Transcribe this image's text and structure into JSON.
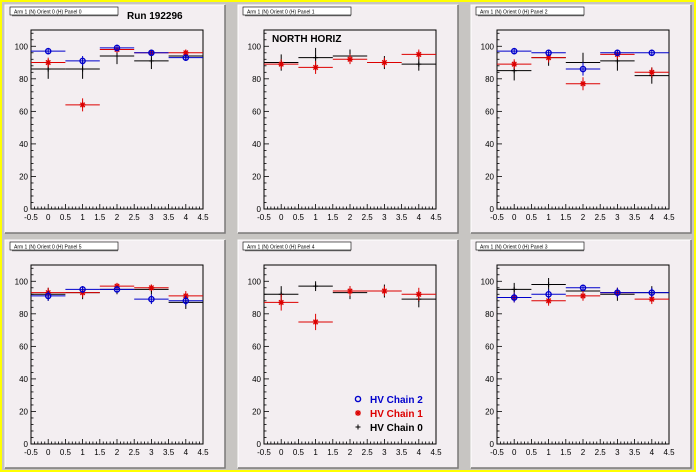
{
  "colors": {
    "chain2": "#0000cc",
    "chain1": "#dd0000",
    "chain0": "#000000",
    "pad_bg": "#f3eef1",
    "canvas_bg": "#c7c5c2",
    "border": "#ffff00"
  },
  "chart_data": [
    {
      "type": "scatter",
      "title": "Arm 1 (N) Orient 0 (H) Panel 0",
      "annotation": "Run 192296",
      "xlim": [
        -0.5,
        4.5
      ],
      "ylim": [
        0,
        110
      ],
      "x_ticks": [
        "-0.5",
        "0",
        "0.5",
        "1",
        "1.5",
        "2",
        "2.5",
        "3",
        "3.5",
        "4",
        "4.5"
      ],
      "y_ticks": [
        "0",
        "20",
        "40",
        "60",
        "80",
        "100"
      ],
      "series": [
        {
          "name": "HV Chain 2",
          "marker": "circle",
          "x": [
            0,
            1,
            2,
            3,
            4
          ],
          "y": [
            97,
            91,
            99,
            96,
            93
          ],
          "yerr": [
            2,
            3,
            2,
            2,
            2
          ]
        },
        {
          "name": "HV Chain 1",
          "marker": "star",
          "x": [
            0,
            1,
            2,
            3,
            4
          ],
          "y": [
            90,
            64,
            98,
            96,
            96
          ],
          "yerr": [
            3,
            4,
            2,
            2,
            2
          ]
        },
        {
          "name": "HV Chain 0",
          "marker": "plus",
          "x": [
            0,
            1,
            2,
            3,
            4
          ],
          "y": [
            86,
            86,
            94,
            91,
            94
          ],
          "yerr": [
            6,
            6,
            5,
            5,
            3
          ]
        }
      ]
    },
    {
      "type": "scatter",
      "title": "Arm 1 (N) Orient 0 (H) Panel 1",
      "annotation": "NORTH HORIZ",
      "xlim": [
        -0.5,
        4.5
      ],
      "ylim": [
        0,
        110
      ],
      "x_ticks": [
        "-0.5",
        "0",
        "0.5",
        "1",
        "1.5",
        "2",
        "2.5",
        "3",
        "3.5",
        "4",
        "4.5"
      ],
      "y_ticks": [
        "0",
        "20",
        "40",
        "60",
        "80",
        "100"
      ],
      "series": [
        {
          "name": "HV Chain 1",
          "marker": "star",
          "x": [
            0,
            1,
            2,
            3,
            4
          ],
          "y": [
            89,
            87,
            92,
            90,
            95
          ],
          "yerr": [
            3,
            4,
            3,
            3,
            3
          ]
        },
        {
          "name": "HV Chain 0",
          "marker": "plus",
          "x": [
            0,
            1,
            2,
            3,
            4
          ],
          "y": [
            90,
            93,
            94,
            90,
            89
          ],
          "yerr": [
            5,
            6,
            4,
            4,
            4
          ]
        }
      ]
    },
    {
      "type": "scatter",
      "title": "Arm 1 (N) Orient 0 (H) Panel 2",
      "annotation": "",
      "xlim": [
        -0.5,
        4.5
      ],
      "ylim": [
        0,
        110
      ],
      "x_ticks": [
        "-0.5",
        "0",
        "0.5",
        "1",
        "1.5",
        "2",
        "2.5",
        "3",
        "3.5",
        "4",
        "4.5"
      ],
      "y_ticks": [
        "0",
        "20",
        "40",
        "60",
        "80",
        "100"
      ],
      "series": [
        {
          "name": "HV Chain 2",
          "marker": "circle",
          "x": [
            0,
            1,
            2,
            3,
            4
          ],
          "y": [
            97,
            96,
            86,
            96,
            96
          ],
          "yerr": [
            2,
            2,
            4,
            2,
            2
          ]
        },
        {
          "name": "HV Chain 1",
          "marker": "star",
          "x": [
            0,
            1,
            2,
            3,
            4
          ],
          "y": [
            89,
            93,
            77,
            95,
            84
          ],
          "yerr": [
            3,
            3,
            4,
            3,
            3
          ]
        },
        {
          "name": "HV Chain 0",
          "marker": "plus",
          "x": [
            0,
            1,
            2,
            3,
            4
          ],
          "y": [
            85,
            93,
            90,
            91,
            82
          ],
          "yerr": [
            6,
            5,
            6,
            6,
            5
          ]
        }
      ]
    },
    {
      "type": "scatter",
      "title": "Arm 1 (N) Orient 0 (H) Panel 5",
      "annotation": "",
      "xlim": [
        -0.5,
        4.5
      ],
      "ylim": [
        0,
        110
      ],
      "x_ticks": [
        "-0.5",
        "0",
        "0.5",
        "1",
        "1.5",
        "2",
        "2.5",
        "3",
        "3.5",
        "4",
        "4.5"
      ],
      "y_ticks": [
        "0",
        "20",
        "40",
        "60",
        "80",
        "100"
      ],
      "series": [
        {
          "name": "HV Chain 2",
          "marker": "circle",
          "x": [
            0,
            1,
            2,
            3,
            4
          ],
          "y": [
            91,
            95,
            95,
            89,
            88
          ],
          "yerr": [
            3,
            2,
            2,
            3,
            3
          ]
        },
        {
          "name": "HV Chain 1",
          "marker": "star",
          "x": [
            0,
            1,
            2,
            3,
            4
          ],
          "y": [
            93,
            93,
            97,
            96,
            91
          ],
          "yerr": [
            3,
            3,
            2,
            2,
            3
          ]
        },
        {
          "name": "HV Chain 0",
          "marker": "plus",
          "x": [
            0,
            1,
            2,
            3,
            4
          ],
          "y": [
            92,
            93,
            95,
            95,
            87
          ],
          "yerr": [
            4,
            4,
            3,
            3,
            4
          ]
        }
      ]
    },
    {
      "type": "scatter",
      "title": "Arm 1 (N) Orient 0 (H) Panel 4",
      "annotation": "",
      "xlim": [
        -0.5,
        4.5
      ],
      "ylim": [
        0,
        110
      ],
      "x_ticks": [
        "-0.5",
        "0",
        "0.5",
        "1",
        "1.5",
        "2",
        "2.5",
        "3",
        "3.5",
        "4",
        "4.5"
      ],
      "y_ticks": [
        "0",
        "20",
        "40",
        "60",
        "80",
        "100"
      ],
      "series": [
        {
          "name": "HV Chain 1",
          "marker": "star",
          "x": [
            0,
            1,
            2,
            3,
            4
          ],
          "y": [
            87,
            75,
            94,
            94,
            92
          ],
          "yerr": [
            5,
            5,
            3,
            3,
            4
          ]
        },
        {
          "name": "HV Chain 0",
          "marker": "plus",
          "x": [
            0,
            1,
            2,
            3,
            4
          ],
          "y": [
            92,
            97,
            93,
            94,
            89
          ],
          "yerr": [
            5,
            3,
            4,
            4,
            5
          ]
        }
      ],
      "legend": {
        "position": "bottom-right",
        "entries": [
          {
            "label": "HV Chain 2",
            "marker": "circle",
            "color": "#0000cc"
          },
          {
            "label": "HV Chain 1",
            "marker": "star",
            "color": "#dd0000"
          },
          {
            "label": "HV Chain 0",
            "marker": "plus",
            "color": "#000000"
          }
        ]
      }
    },
    {
      "type": "scatter",
      "title": "Arm 1 (N) Orient 0 (H) Panel 3",
      "annotation": "",
      "xlim": [
        -0.5,
        4.5
      ],
      "ylim": [
        0,
        110
      ],
      "x_ticks": [
        "-0.5",
        "0",
        "0.5",
        "1",
        "1.5",
        "2",
        "2.5",
        "3",
        "3.5",
        "4",
        "4.5"
      ],
      "y_ticks": [
        "0",
        "20",
        "40",
        "60",
        "80",
        "100"
      ],
      "series": [
        {
          "name": "HV Chain 2",
          "marker": "circle",
          "x": [
            0,
            1,
            2,
            3,
            4
          ],
          "y": [
            90,
            92,
            96,
            93,
            93
          ],
          "yerr": [
            3,
            3,
            2,
            3,
            3
          ]
        },
        {
          "name": "HV Chain 1",
          "marker": "star",
          "x": [
            0,
            1,
            2,
            3,
            4
          ],
          "y": [
            90,
            88,
            91,
            93,
            89
          ],
          "yerr": [
            3,
            3,
            3,
            3,
            3
          ]
        },
        {
          "name": "HV Chain 0",
          "marker": "plus",
          "x": [
            0,
            1,
            2,
            3,
            4
          ],
          "y": [
            95,
            98,
            94,
            92,
            93
          ],
          "yerr": [
            4,
            4,
            4,
            4,
            4
          ]
        }
      ]
    }
  ]
}
